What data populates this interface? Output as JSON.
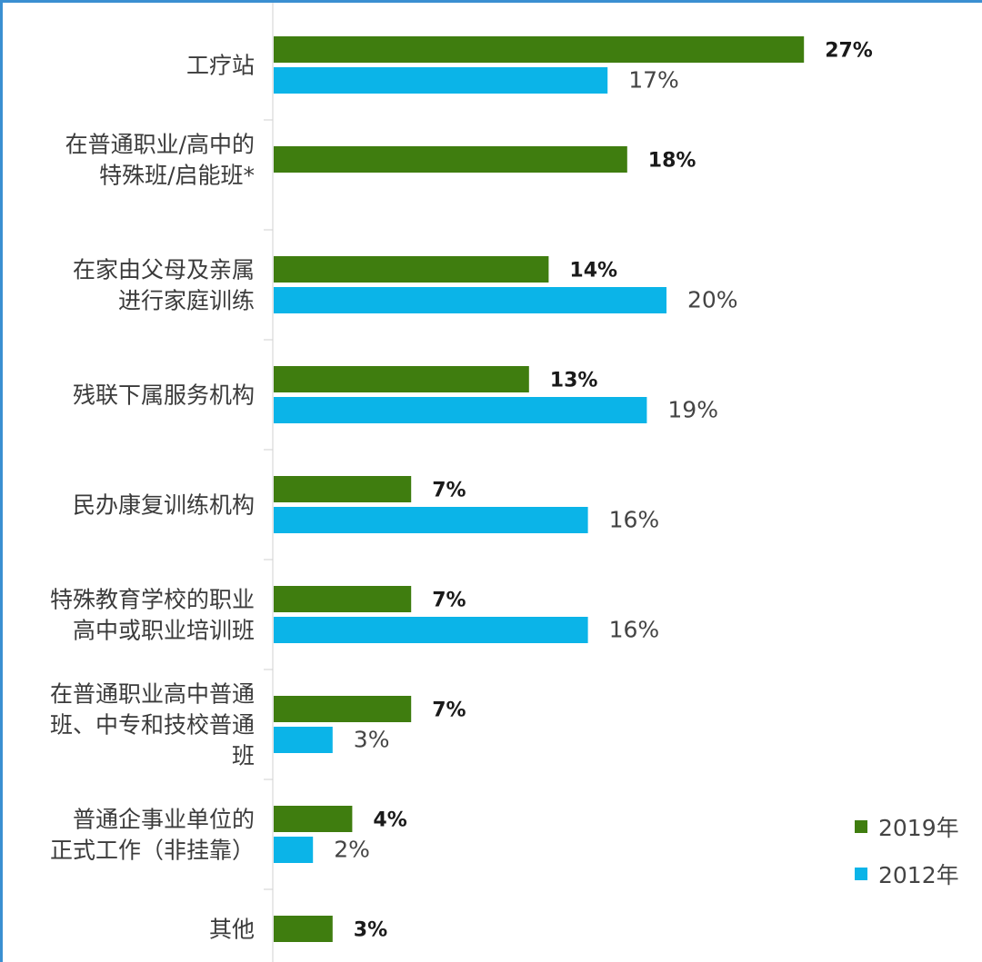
{
  "chart_data": {
    "type": "bar",
    "orientation": "horizontal",
    "categories": [
      [
        "工疗站"
      ],
      [
        "在普通职业/高中的",
        "特殊班/启能班*"
      ],
      [
        "在家由父母及亲属",
        "进行家庭训练"
      ],
      [
        "残联下属服务机构"
      ],
      [
        "民办康复训练机构"
      ],
      [
        "特殊教育学校的职业",
        "高中或职业培训班"
      ],
      [
        "在普通职业高中普通",
        "班、中专和技校普通",
        "班"
      ],
      [
        "普通企事业单位的",
        "正式工作（非挂靠）"
      ],
      [
        "其他"
      ]
    ],
    "series": [
      {
        "name": "2019年",
        "color": "#3f7d0f",
        "values": [
          27,
          18,
          14,
          13,
          7,
          7,
          7,
          4,
          3
        ],
        "labels": [
          "27%",
          "18%",
          "14%",
          "13%",
          "7%",
          "7%",
          "7%",
          "4%",
          "3%"
        ]
      },
      {
        "name": "2012年",
        "color": "#0bb4e8",
        "values": [
          17,
          null,
          20,
          19,
          16,
          16,
          3,
          2,
          null
        ],
        "labels": [
          "17%",
          "",
          "20%",
          "19%",
          "16%",
          "16%",
          "3%",
          "2%",
          ""
        ]
      }
    ],
    "legend_position": "bottom-right",
    "grid": false
  }
}
